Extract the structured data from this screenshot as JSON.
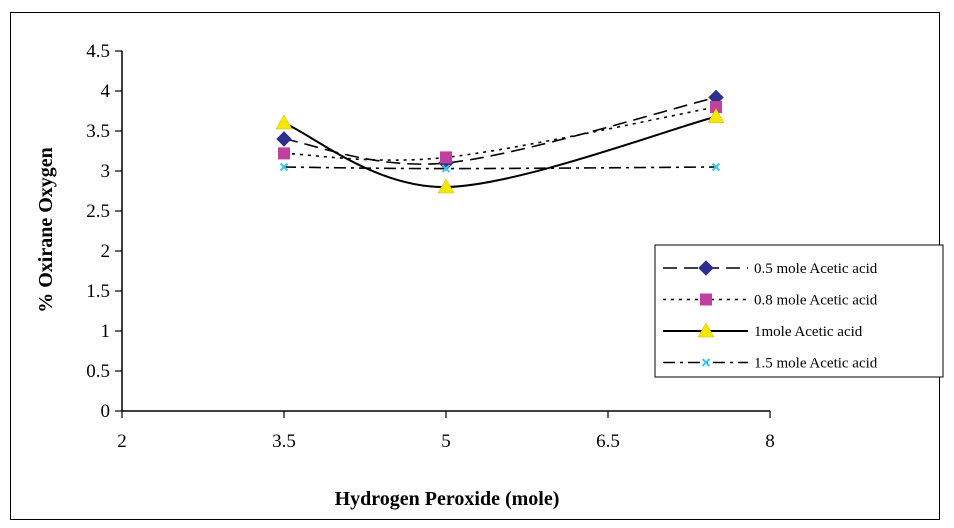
{
  "chart_data": {
    "type": "line",
    "xlabel": "Hydrogen Peroxide (mole)",
    "ylabel": "% Oxirane Oxygen",
    "xlim": [
      2,
      8
    ],
    "ylim": [
      0,
      4.5
    ],
    "x_ticks": [
      "2",
      "3.5",
      "5",
      "6.5",
      "8"
    ],
    "y_ticks": [
      "0",
      "0.5",
      "1",
      "1.5",
      "2",
      "2.5",
      "3",
      "3.5",
      "4",
      "4.5"
    ],
    "x": [
      3.5,
      5,
      7.5
    ],
    "series": [
      {
        "name": "0.5 mole Acetic acid",
        "values": [
          3.4,
          3.1,
          3.92
        ],
        "color": "#2e2e8c",
        "marker": "diamond",
        "line": "dashed"
      },
      {
        "name": "0.8 mole Acetic acid",
        "values": [
          3.22,
          3.17,
          3.8
        ],
        "color": "#c040a0",
        "marker": "square",
        "line": "dotted"
      },
      {
        "name": "1mole Acetic acid",
        "values": [
          3.6,
          2.8,
          3.68
        ],
        "color": "#f4e800",
        "marker": "triangle",
        "line": "solid"
      },
      {
        "name": "1.5 mole Acetic acid",
        "values": [
          3.05,
          3.03,
          3.05
        ],
        "color": "#40c8e0",
        "marker": "x",
        "line": "dashdot"
      }
    ],
    "grid": false,
    "legend_position": "right"
  }
}
